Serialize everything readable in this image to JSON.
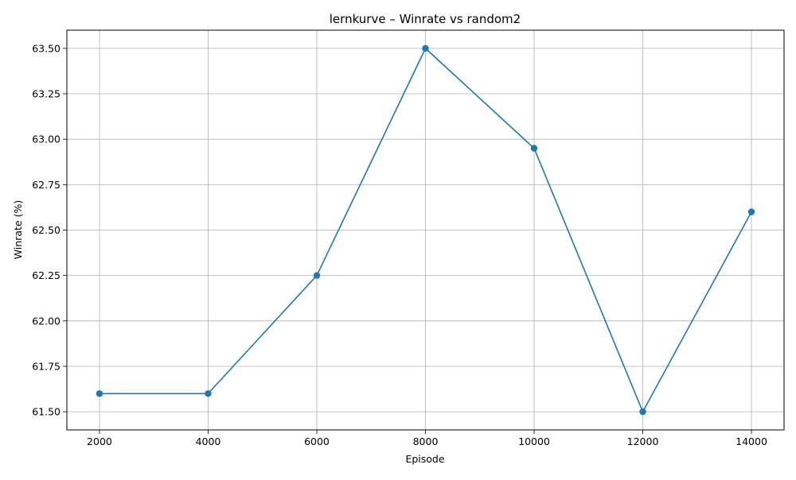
{
  "chart_data": {
    "type": "line",
    "title": "lernkurve – Winrate vs random2",
    "xlabel": "Episode",
    "ylabel": "Winrate (%)",
    "x": [
      2000,
      4000,
      6000,
      8000,
      10000,
      12000,
      14000
    ],
    "series": [
      {
        "values": [
          61.6,
          61.6,
          62.25,
          63.5,
          62.95,
          61.5,
          62.6
        ],
        "color": "#1f77b4",
        "marker": "circle"
      }
    ],
    "xlim": [
      1400,
      14600
    ],
    "ylim": [
      61.4,
      63.6
    ],
    "xticks": [
      2000,
      4000,
      6000,
      8000,
      10000,
      12000,
      14000
    ],
    "xtick_labels": [
      "2000",
      "4000",
      "6000",
      "8000",
      "10000",
      "12000",
      "14000"
    ],
    "yticks": [
      61.5,
      61.75,
      62.0,
      62.25,
      62.5,
      62.75,
      63.0,
      63.25,
      63.5
    ],
    "ytick_labels": [
      "61.50",
      "61.75",
      "62.00",
      "62.25",
      "62.50",
      "62.75",
      "63.00",
      "63.25",
      "63.50"
    ],
    "grid": true,
    "legend": false
  }
}
